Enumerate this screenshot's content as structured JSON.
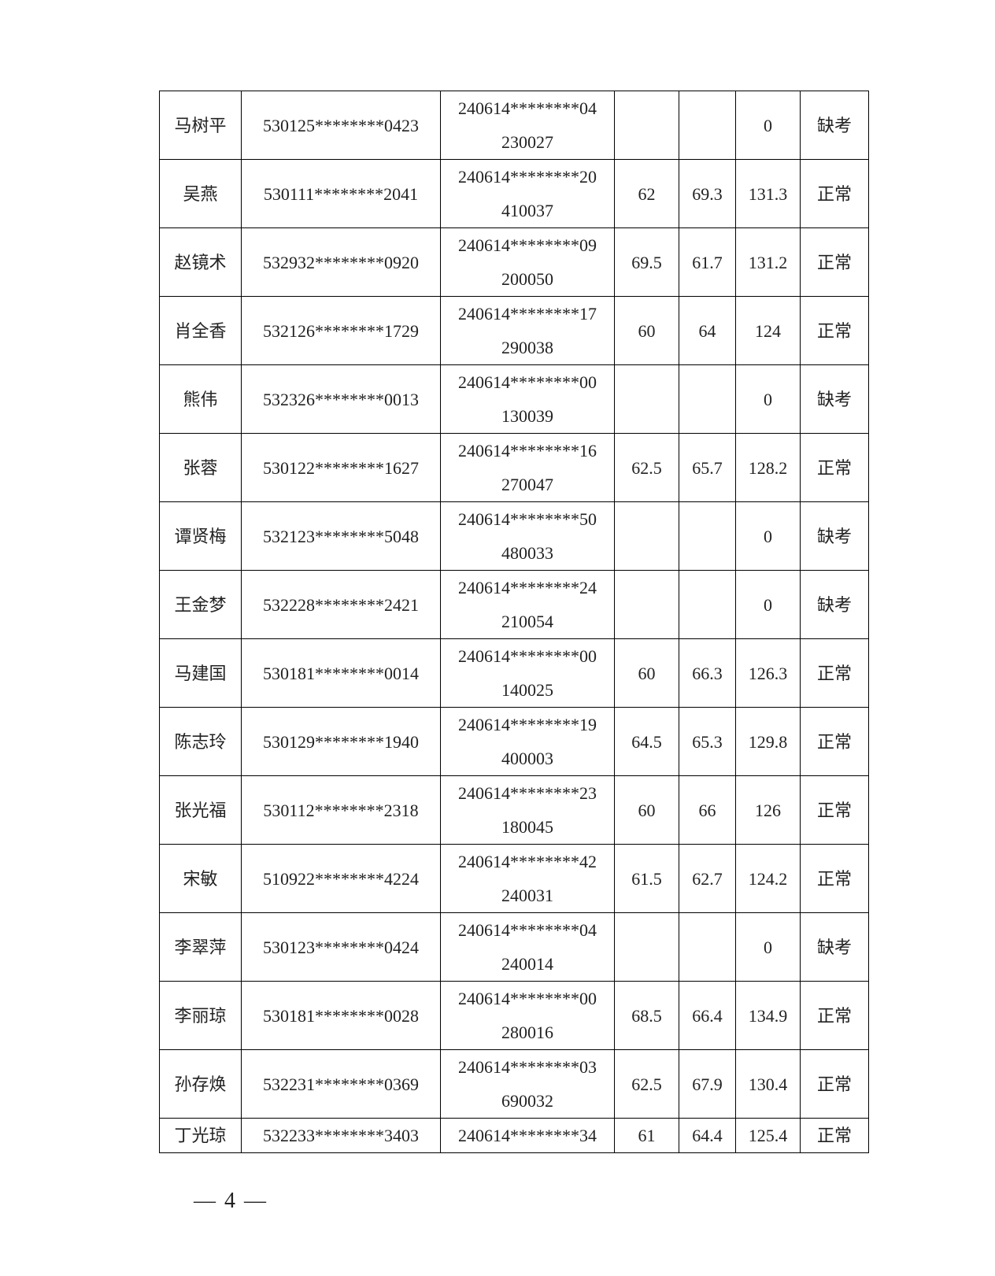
{
  "table": {
    "rows": [
      [
        "马树平",
        "530125********0423",
        "240614********04230027",
        null,
        null,
        "0",
        "缺考"
      ],
      [
        "吴燕",
        "530111********2041",
        "240614********20410037",
        "62",
        "69.3",
        "131.3",
        "正常"
      ],
      [
        "赵镜术",
        "532932********0920",
        "240614********09200050",
        "69.5",
        "61.7",
        "131.2",
        "正常"
      ],
      [
        "肖全香",
        "532126********1729",
        "240614********17290038",
        "60",
        "64",
        "124",
        "正常"
      ],
      [
        "熊伟",
        "532326********0013",
        "240614********00130039",
        null,
        null,
        "0",
        "缺考"
      ],
      [
        "张蓉",
        "530122********1627",
        "240614********16270047",
        "62.5",
        "65.7",
        "128.2",
        "正常"
      ],
      [
        "谭贤梅",
        "532123********5048",
        "240614********50480033",
        null,
        null,
        "0",
        "缺考"
      ],
      [
        "王金梦",
        "532228********2421",
        "240614********24210054",
        null,
        null,
        "0",
        "缺考"
      ],
      [
        "马建国",
        "530181********0014",
        "240614********00140025",
        "60",
        "66.3",
        "126.3",
        "正常"
      ],
      [
        "陈志玲",
        "530129********1940",
        "240614********19400003",
        "64.5",
        "65.3",
        "129.8",
        "正常"
      ],
      [
        "张光福",
        "530112********2318",
        "240614********23180045",
        "60",
        "66",
        "126",
        "正常"
      ],
      [
        "宋敏",
        "510922********4224",
        "240614********42240031",
        "61.5",
        "62.7",
        "124.2",
        "正常"
      ],
      [
        "李翠萍",
        "530123********0424",
        "240614********04240014",
        null,
        null,
        "0",
        "缺考"
      ],
      [
        "李丽琼",
        "530181********0028",
        "240614********00280016",
        "68.5",
        "66.4",
        "134.9",
        "正常"
      ],
      [
        "孙存焕",
        "532231********0369",
        "240614********03690032",
        "62.5",
        "67.9",
        "130.4",
        "正常"
      ],
      [
        "丁光琼",
        "532233********3403",
        "240614********34",
        "61",
        "64.4",
        "125.4",
        "正常"
      ]
    ]
  },
  "footer": {
    "page_number": "— 4 —"
  }
}
